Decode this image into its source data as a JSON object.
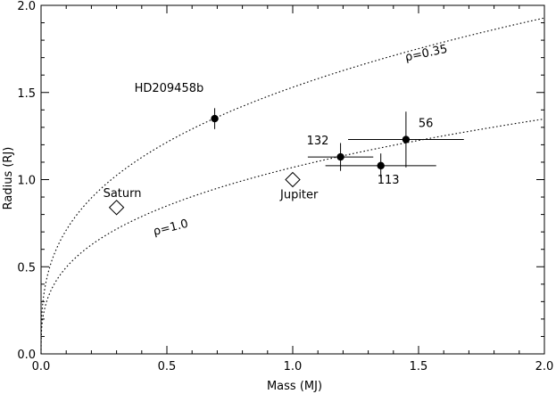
{
  "chart_data": {
    "type": "scatter",
    "title": "",
    "xlabel": "Mass (MJ)",
    "ylabel": "Radius (RJ)",
    "xlim": [
      0.0,
      2.0
    ],
    "ylim": [
      0.0,
      2.0
    ],
    "grid": false,
    "x_ticks": [
      {
        "value": 0.0,
        "label": "0.0"
      },
      {
        "value": 0.5,
        "label": "0.5"
      },
      {
        "value": 1.0,
        "label": "1.0"
      },
      {
        "value": 1.5,
        "label": "1.5"
      },
      {
        "value": 2.0,
        "label": "2.0"
      }
    ],
    "y_ticks": [
      {
        "value": 0.0,
        "label": "0.0"
      },
      {
        "value": 0.5,
        "label": "0.5"
      },
      {
        "value": 1.0,
        "label": "1.0"
      },
      {
        "value": 1.5,
        "label": "1.5"
      },
      {
        "value": 2.0,
        "label": "2.0"
      }
    ],
    "points": [
      {
        "label": "HD209458b",
        "x": 0.69,
        "y": 1.35,
        "x_err": 0.0,
        "y_err": 0.06,
        "marker": "filled-circle",
        "label_pos": "upper-left"
      },
      {
        "label": "132",
        "x": 1.19,
        "y": 1.13,
        "x_err": 0.13,
        "y_err": 0.08,
        "marker": "filled-circle",
        "label_pos": "upper-left"
      },
      {
        "label": "113",
        "x": 1.35,
        "y": 1.08,
        "x_err": 0.22,
        "y_err": 0.07,
        "marker": "filled-circle",
        "label_pos": "lower-right"
      },
      {
        "label": "56",
        "x": 1.45,
        "y": 1.23,
        "x_err": 0.23,
        "y_err": 0.16,
        "marker": "filled-circle",
        "label_pos": "upper-right"
      },
      {
        "label": "Saturn",
        "x": 0.3,
        "y": 0.84,
        "marker": "open-diamond",
        "label_pos": "above"
      },
      {
        "label": "Jupiter",
        "x": 1.0,
        "y": 1.0,
        "marker": "open-diamond",
        "label_pos": "below"
      }
    ],
    "curves": [
      {
        "label": "ρ=0.35",
        "relation": "R ∝ M^(1/3)",
        "radius_at_mass_1": 1.53,
        "label_at": {
          "x": 1.45,
          "y": 1.68
        },
        "label_rotation": -12,
        "style": "dotted"
      },
      {
        "label": "ρ=1.0",
        "relation": "R ∝ M^(1/3)",
        "radius_at_mass_1": 1.07,
        "label_at": {
          "x": 0.45,
          "y": 0.68
        },
        "label_rotation": -14,
        "style": "dotted"
      }
    ]
  }
}
